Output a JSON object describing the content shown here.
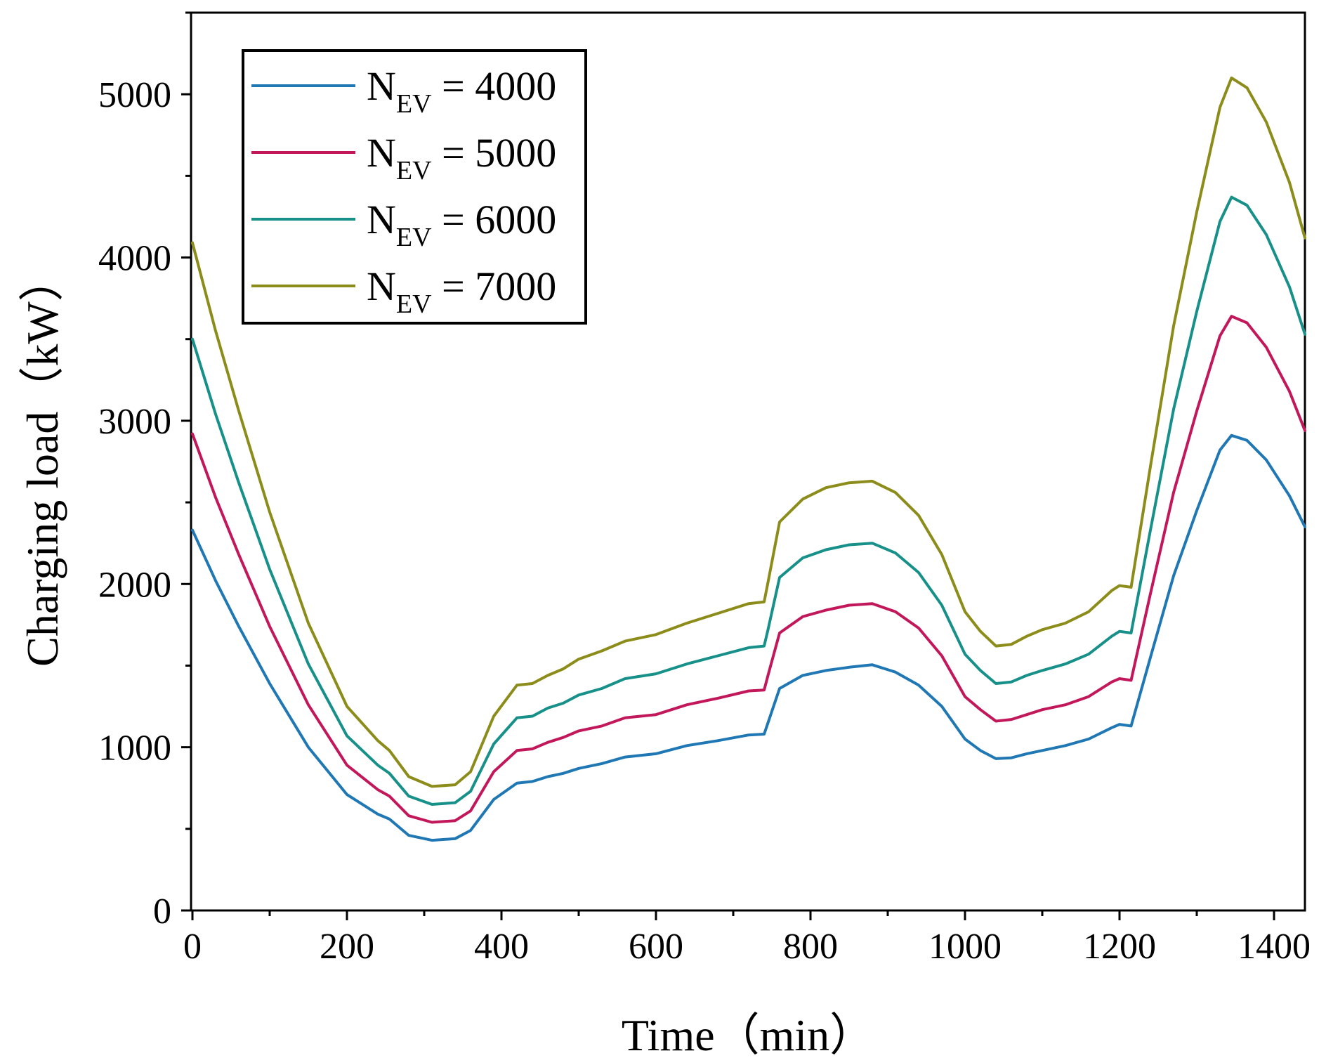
{
  "chart_data": {
    "type": "line",
    "title": "",
    "xlabel": "Time（min）",
    "ylabel": "Charging load（kW）",
    "xlim": [
      0,
      1440
    ],
    "ylim": [
      0,
      5500
    ],
    "xticks": [
      0,
      200,
      400,
      600,
      800,
      1000,
      1200,
      1400
    ],
    "yticks": [
      0,
      1000,
      2000,
      3000,
      4000,
      5000
    ],
    "grid": false,
    "legend_position": "top-left",
    "legend_base": "N",
    "legend_sub": "EV",
    "series": [
      {
        "name": "N_EV = 4000",
        "legend_value": " = 4000",
        "color": "#1f77b4",
        "x": [
          0,
          30,
          60,
          100,
          150,
          200,
          240,
          255,
          280,
          310,
          340,
          360,
          390,
          420,
          440,
          460,
          480,
          500,
          530,
          560,
          600,
          640,
          680,
          720,
          740,
          745,
          760,
          790,
          820,
          850,
          880,
          910,
          940,
          970,
          1000,
          1020,
          1040,
          1060,
          1080,
          1100,
          1130,
          1160,
          1190,
          1200,
          1215,
          1240,
          1270,
          1300,
          1330,
          1345,
          1365,
          1390,
          1420,
          1440
        ],
        "values": [
          2330,
          2020,
          1740,
          1390,
          1000,
          710,
          590,
          560,
          460,
          430,
          440,
          490,
          680,
          780,
          790,
          820,
          840,
          870,
          900,
          940,
          960,
          1010,
          1040,
          1075,
          1080,
          1150,
          1360,
          1440,
          1470,
          1490,
          1505,
          1460,
          1380,
          1250,
          1050,
          980,
          930,
          935,
          960,
          980,
          1010,
          1050,
          1120,
          1140,
          1130,
          1550,
          2050,
          2450,
          2820,
          2910,
          2880,
          2760,
          2540,
          2350
        ]
      },
      {
        "name": "N_EV = 5000",
        "legend_value": " = 5000",
        "color": "#c2185b",
        "x": [
          0,
          30,
          60,
          100,
          150,
          200,
          240,
          255,
          280,
          310,
          340,
          360,
          390,
          420,
          440,
          460,
          480,
          500,
          530,
          560,
          600,
          640,
          680,
          720,
          740,
          745,
          760,
          790,
          820,
          850,
          880,
          910,
          940,
          970,
          1000,
          1020,
          1040,
          1060,
          1080,
          1100,
          1130,
          1160,
          1190,
          1200,
          1215,
          1240,
          1270,
          1300,
          1330,
          1345,
          1365,
          1390,
          1420,
          1440
        ],
        "values": [
          2920,
          2530,
          2180,
          1740,
          1260,
          890,
          740,
          700,
          580,
          540,
          550,
          610,
          850,
          980,
          990,
          1030,
          1060,
          1100,
          1130,
          1180,
          1200,
          1260,
          1300,
          1345,
          1350,
          1440,
          1700,
          1800,
          1840,
          1870,
          1880,
          1830,
          1730,
          1560,
          1310,
          1230,
          1160,
          1170,
          1200,
          1230,
          1260,
          1310,
          1400,
          1420,
          1410,
          1940,
          2560,
          3060,
          3520,
          3640,
          3600,
          3450,
          3180,
          2940
        ]
      },
      {
        "name": "N_EV = 6000",
        "legend_value": " = 6000",
        "color": "#17908a",
        "x": [
          0,
          30,
          60,
          100,
          150,
          200,
          240,
          255,
          280,
          310,
          340,
          360,
          390,
          420,
          440,
          460,
          480,
          500,
          530,
          560,
          600,
          640,
          680,
          720,
          740,
          745,
          760,
          790,
          820,
          850,
          880,
          910,
          940,
          970,
          1000,
          1020,
          1040,
          1060,
          1080,
          1100,
          1130,
          1160,
          1190,
          1200,
          1215,
          1240,
          1270,
          1300,
          1330,
          1345,
          1365,
          1390,
          1420,
          1440
        ],
        "values": [
          3500,
          3040,
          2620,
          2090,
          1510,
          1070,
          890,
          840,
          700,
          650,
          660,
          730,
          1020,
          1180,
          1190,
          1240,
          1270,
          1320,
          1360,
          1420,
          1450,
          1510,
          1560,
          1610,
          1620,
          1720,
          2040,
          2160,
          2210,
          2240,
          2250,
          2190,
          2070,
          1870,
          1570,
          1470,
          1390,
          1400,
          1440,
          1470,
          1510,
          1570,
          1680,
          1710,
          1700,
          2330,
          3070,
          3670,
          4220,
          4370,
          4320,
          4140,
          3820,
          3530
        ]
      },
      {
        "name": "N_EV = 7000",
        "legend_value": " = 7000",
        "color": "#8c8c1a",
        "x": [
          0,
          30,
          60,
          100,
          150,
          200,
          240,
          255,
          280,
          310,
          340,
          360,
          390,
          420,
          440,
          460,
          480,
          500,
          530,
          560,
          600,
          640,
          680,
          720,
          740,
          745,
          760,
          790,
          820,
          850,
          880,
          910,
          940,
          970,
          1000,
          1020,
          1040,
          1060,
          1080,
          1100,
          1130,
          1160,
          1190,
          1200,
          1215,
          1240,
          1270,
          1300,
          1330,
          1345,
          1365,
          1390,
          1420,
          1440
        ],
        "values": [
          4090,
          3550,
          3060,
          2440,
          1760,
          1250,
          1040,
          980,
          820,
          760,
          770,
          850,
          1190,
          1380,
          1390,
          1440,
          1480,
          1540,
          1590,
          1650,
          1690,
          1760,
          1820,
          1880,
          1890,
          2010,
          2380,
          2520,
          2590,
          2620,
          2630,
          2560,
          2420,
          2180,
          1830,
          1710,
          1620,
          1630,
          1680,
          1720,
          1760,
          1830,
          1960,
          1990,
          1980,
          2720,
          3580,
          4280,
          4920,
          5100,
          5040,
          4830,
          4460,
          4120
        ]
      }
    ]
  }
}
